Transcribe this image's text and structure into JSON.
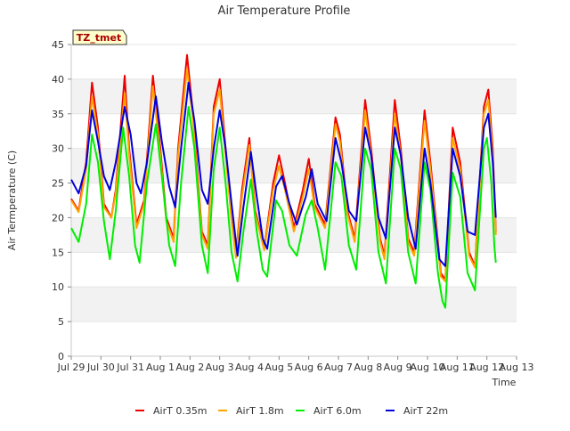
{
  "chart_data": {
    "type": "line",
    "title": "Air Temperature Profile",
    "xlabel": "Time",
    "ylabel": "Air Termperature (C)",
    "ylim": [
      0,
      45
    ],
    "yticks": [
      0,
      5,
      10,
      15,
      20,
      25,
      30,
      35,
      40,
      45
    ],
    "xlim": [
      0,
      15
    ],
    "xticks": [
      {
        "pos": 0,
        "label": "Jul 29"
      },
      {
        "pos": 1,
        "label": "Jul 30"
      },
      {
        "pos": 2,
        "label": "Jul 31"
      },
      {
        "pos": 3,
        "label": "Aug 1"
      },
      {
        "pos": 4,
        "label": "Aug 2"
      },
      {
        "pos": 5,
        "label": "Aug 3"
      },
      {
        "pos": 6,
        "label": "Aug 4"
      },
      {
        "pos": 7,
        "label": "Aug 5"
      },
      {
        "pos": 8,
        "label": "Aug 6"
      },
      {
        "pos": 9,
        "label": "Aug 7"
      },
      {
        "pos": 10,
        "label": "Aug 8"
      },
      {
        "pos": 11,
        "label": "Aug 9"
      },
      {
        "pos": 12,
        "label": "Aug 10"
      },
      {
        "pos": 13,
        "label": "Aug 11"
      },
      {
        "pos": 14,
        "label": "Aug 12"
      },
      {
        "pos": 15,
        "label": "Aug 13"
      }
    ],
    "grid": "horizontal alternating bands",
    "legend_position": "bottom",
    "annotation": "TZ_tmet",
    "series": [
      {
        "name": "AirT 0.35m",
        "color": "#ee0000",
        "points": [
          [
            0.0,
            22.7
          ],
          [
            0.25,
            21.0
          ],
          [
            0.5,
            28.0
          ],
          [
            0.7,
            39.5
          ],
          [
            0.9,
            33.0
          ],
          [
            1.1,
            22.0
          ],
          [
            1.35,
            20.0
          ],
          [
            1.5,
            24.0
          ],
          [
            1.8,
            40.5
          ],
          [
            1.95,
            30.0
          ],
          [
            2.2,
            19.0
          ],
          [
            2.45,
            22.5
          ],
          [
            2.75,
            40.5
          ],
          [
            3.0,
            30.0
          ],
          [
            3.2,
            20.0
          ],
          [
            3.45,
            17.0
          ],
          [
            3.6,
            30.0
          ],
          [
            3.9,
            43.5
          ],
          [
            4.1,
            35.0
          ],
          [
            4.4,
            18.0
          ],
          [
            4.6,
            16.0
          ],
          [
            4.8,
            36.0
          ],
          [
            5.0,
            40.0
          ],
          [
            5.2,
            30.0
          ],
          [
            5.4,
            20.0
          ],
          [
            5.55,
            14.5
          ],
          [
            5.75,
            24.0
          ],
          [
            6.0,
            31.5
          ],
          [
            6.2,
            21.0
          ],
          [
            6.5,
            15.5
          ],
          [
            6.8,
            25.0
          ],
          [
            7.0,
            29.0
          ],
          [
            7.2,
            25.0
          ],
          [
            7.5,
            18.5
          ],
          [
            7.8,
            24.0
          ],
          [
            8.0,
            28.5
          ],
          [
            8.2,
            22.0
          ],
          [
            8.55,
            19.0
          ],
          [
            8.9,
            34.5
          ],
          [
            9.05,
            32.0
          ],
          [
            9.3,
            21.0
          ],
          [
            9.55,
            17.0
          ],
          [
            9.9,
            37.0
          ],
          [
            10.1,
            30.0
          ],
          [
            10.4,
            17.0
          ],
          [
            10.55,
            14.5
          ],
          [
            10.9,
            37.0
          ],
          [
            11.1,
            30.0
          ],
          [
            11.35,
            17.0
          ],
          [
            11.55,
            15.0
          ],
          [
            11.9,
            35.5
          ],
          [
            12.1,
            28.0
          ],
          [
            12.45,
            12.0
          ],
          [
            12.6,
            11.0
          ],
          [
            12.85,
            33.0
          ],
          [
            13.1,
            28.0
          ],
          [
            13.4,
            15.0
          ],
          [
            13.6,
            13.0
          ],
          [
            13.9,
            36.0
          ],
          [
            14.05,
            38.5
          ],
          [
            14.2,
            30.0
          ],
          [
            14.3,
            18.0
          ]
        ]
      },
      {
        "name": "AirT 1.8m",
        "color": "#ffa500",
        "points": [
          [
            0.0,
            22.5
          ],
          [
            0.25,
            20.8
          ],
          [
            0.5,
            27.0
          ],
          [
            0.7,
            37.5
          ],
          [
            0.9,
            32.0
          ],
          [
            1.1,
            21.5
          ],
          [
            1.35,
            20.0
          ],
          [
            1.5,
            23.5
          ],
          [
            1.8,
            38.0
          ],
          [
            1.95,
            29.0
          ],
          [
            2.2,
            18.5
          ],
          [
            2.45,
            22.0
          ],
          [
            2.75,
            39.0
          ],
          [
            3.0,
            29.0
          ],
          [
            3.2,
            19.5
          ],
          [
            3.45,
            16.5
          ],
          [
            3.6,
            29.0
          ],
          [
            3.9,
            41.5
          ],
          [
            4.1,
            34.0
          ],
          [
            4.4,
            17.5
          ],
          [
            4.6,
            15.5
          ],
          [
            4.8,
            35.0
          ],
          [
            5.0,
            38.5
          ],
          [
            5.2,
            29.0
          ],
          [
            5.4,
            19.5
          ],
          [
            5.55,
            14.2
          ],
          [
            5.75,
            23.0
          ],
          [
            6.0,
            30.5
          ],
          [
            6.2,
            20.5
          ],
          [
            6.5,
            15.3
          ],
          [
            6.8,
            24.0
          ],
          [
            7.0,
            27.5
          ],
          [
            7.2,
            24.0
          ],
          [
            7.5,
            18.0
          ],
          [
            7.8,
            23.0
          ],
          [
            8.0,
            27.0
          ],
          [
            8.2,
            21.5
          ],
          [
            8.55,
            18.5
          ],
          [
            8.9,
            33.5
          ],
          [
            9.05,
            31.0
          ],
          [
            9.3,
            20.5
          ],
          [
            9.55,
            16.5
          ],
          [
            9.9,
            35.5
          ],
          [
            10.1,
            29.0
          ],
          [
            10.4,
            16.5
          ],
          [
            10.55,
            14.0
          ],
          [
            10.9,
            35.0
          ],
          [
            11.1,
            29.0
          ],
          [
            11.35,
            16.5
          ],
          [
            11.55,
            14.5
          ],
          [
            11.9,
            34.0
          ],
          [
            12.1,
            27.0
          ],
          [
            12.45,
            11.5
          ],
          [
            12.6,
            10.8
          ],
          [
            12.85,
            31.5
          ],
          [
            13.1,
            27.0
          ],
          [
            13.4,
            14.5
          ],
          [
            13.6,
            12.8
          ],
          [
            13.9,
            35.0
          ],
          [
            14.05,
            37.0
          ],
          [
            14.2,
            29.0
          ],
          [
            14.3,
            17.5
          ]
        ]
      },
      {
        "name": "AirT 6.0m",
        "color": "#00ee00",
        "points": [
          [
            0.0,
            18.5
          ],
          [
            0.25,
            16.5
          ],
          [
            0.5,
            22.0
          ],
          [
            0.7,
            32.0
          ],
          [
            0.9,
            28.0
          ],
          [
            1.1,
            19.5
          ],
          [
            1.3,
            14.0
          ],
          [
            1.5,
            21.0
          ],
          [
            1.75,
            33.0
          ],
          [
            1.95,
            26.0
          ],
          [
            2.15,
            16.0
          ],
          [
            2.3,
            13.5
          ],
          [
            2.55,
            25.0
          ],
          [
            2.85,
            33.5
          ],
          [
            3.05,
            26.0
          ],
          [
            3.3,
            16.0
          ],
          [
            3.5,
            13.0
          ],
          [
            3.7,
            25.0
          ],
          [
            3.95,
            36.0
          ],
          [
            4.15,
            30.0
          ],
          [
            4.4,
            16.0
          ],
          [
            4.6,
            12.0
          ],
          [
            4.8,
            27.0
          ],
          [
            5.0,
            33.0
          ],
          [
            5.2,
            25.0
          ],
          [
            5.4,
            15.0
          ],
          [
            5.6,
            10.8
          ],
          [
            5.8,
            18.0
          ],
          [
            6.05,
            25.5
          ],
          [
            6.25,
            18.0
          ],
          [
            6.45,
            12.5
          ],
          [
            6.6,
            11.5
          ],
          [
            6.9,
            22.5
          ],
          [
            7.1,
            21.0
          ],
          [
            7.35,
            16.0
          ],
          [
            7.6,
            14.5
          ],
          [
            7.9,
            20.5
          ],
          [
            8.1,
            22.5
          ],
          [
            8.3,
            18.5
          ],
          [
            8.55,
            12.5
          ],
          [
            8.9,
            28.0
          ],
          [
            9.1,
            26.0
          ],
          [
            9.35,
            16.0
          ],
          [
            9.6,
            12.5
          ],
          [
            9.9,
            30.0
          ],
          [
            10.1,
            27.0
          ],
          [
            10.35,
            15.0
          ],
          [
            10.6,
            10.5
          ],
          [
            10.9,
            30.0
          ],
          [
            11.1,
            27.0
          ],
          [
            11.35,
            15.0
          ],
          [
            11.6,
            10.5
          ],
          [
            11.9,
            28.0
          ],
          [
            12.1,
            24.0
          ],
          [
            12.35,
            12.0
          ],
          [
            12.5,
            8.0
          ],
          [
            12.6,
            7.0
          ],
          [
            12.85,
            26.5
          ],
          [
            13.1,
            23.0
          ],
          [
            13.35,
            12.0
          ],
          [
            13.6,
            9.5
          ],
          [
            13.9,
            30.0
          ],
          [
            14.0,
            31.5
          ],
          [
            14.15,
            25.0
          ],
          [
            14.25,
            16.0
          ],
          [
            14.3,
            13.5
          ]
        ]
      },
      {
        "name": "AirT 22m",
        "color": "#0000dd",
        "points": [
          [
            0.0,
            25.5
          ],
          [
            0.25,
            23.5
          ],
          [
            0.5,
            27.5
          ],
          [
            0.7,
            35.5
          ],
          [
            0.9,
            31.0
          ],
          [
            1.1,
            26.0
          ],
          [
            1.3,
            24.0
          ],
          [
            1.5,
            28.0
          ],
          [
            1.8,
            36.0
          ],
          [
            2.0,
            32.0
          ],
          [
            2.2,
            25.0
          ],
          [
            2.35,
            23.5
          ],
          [
            2.55,
            28.0
          ],
          [
            2.85,
            37.5
          ],
          [
            3.05,
            31.0
          ],
          [
            3.3,
            24.5
          ],
          [
            3.5,
            21.5
          ],
          [
            3.7,
            30.0
          ],
          [
            3.95,
            39.5
          ],
          [
            4.15,
            34.0
          ],
          [
            4.4,
            24.0
          ],
          [
            4.6,
            22.0
          ],
          [
            4.8,
            30.0
          ],
          [
            5.0,
            35.5
          ],
          [
            5.2,
            30.0
          ],
          [
            5.4,
            22.0
          ],
          [
            5.6,
            14.5
          ],
          [
            5.8,
            21.5
          ],
          [
            6.05,
            29.5
          ],
          [
            6.25,
            23.0
          ],
          [
            6.45,
            17.0
          ],
          [
            6.6,
            15.5
          ],
          [
            6.9,
            24.5
          ],
          [
            7.1,
            26.0
          ],
          [
            7.35,
            22.0
          ],
          [
            7.6,
            19.0
          ],
          [
            7.9,
            23.0
          ],
          [
            8.1,
            27.0
          ],
          [
            8.3,
            22.0
          ],
          [
            8.6,
            19.5
          ],
          [
            8.9,
            31.5
          ],
          [
            9.1,
            28.0
          ],
          [
            9.35,
            21.0
          ],
          [
            9.6,
            19.5
          ],
          [
            9.9,
            33.0
          ],
          [
            10.1,
            29.0
          ],
          [
            10.35,
            20.0
          ],
          [
            10.6,
            17.0
          ],
          [
            10.9,
            33.0
          ],
          [
            11.1,
            29.0
          ],
          [
            11.35,
            20.0
          ],
          [
            11.6,
            15.5
          ],
          [
            11.9,
            30.0
          ],
          [
            12.1,
            25.0
          ],
          [
            12.4,
            14.0
          ],
          [
            12.6,
            13.0
          ],
          [
            12.85,
            30.0
          ],
          [
            13.1,
            26.0
          ],
          [
            13.35,
            18.0
          ],
          [
            13.6,
            17.5
          ],
          [
            13.9,
            33.0
          ],
          [
            14.05,
            35.0
          ],
          [
            14.2,
            28.0
          ],
          [
            14.3,
            20.0
          ]
        ]
      }
    ]
  }
}
